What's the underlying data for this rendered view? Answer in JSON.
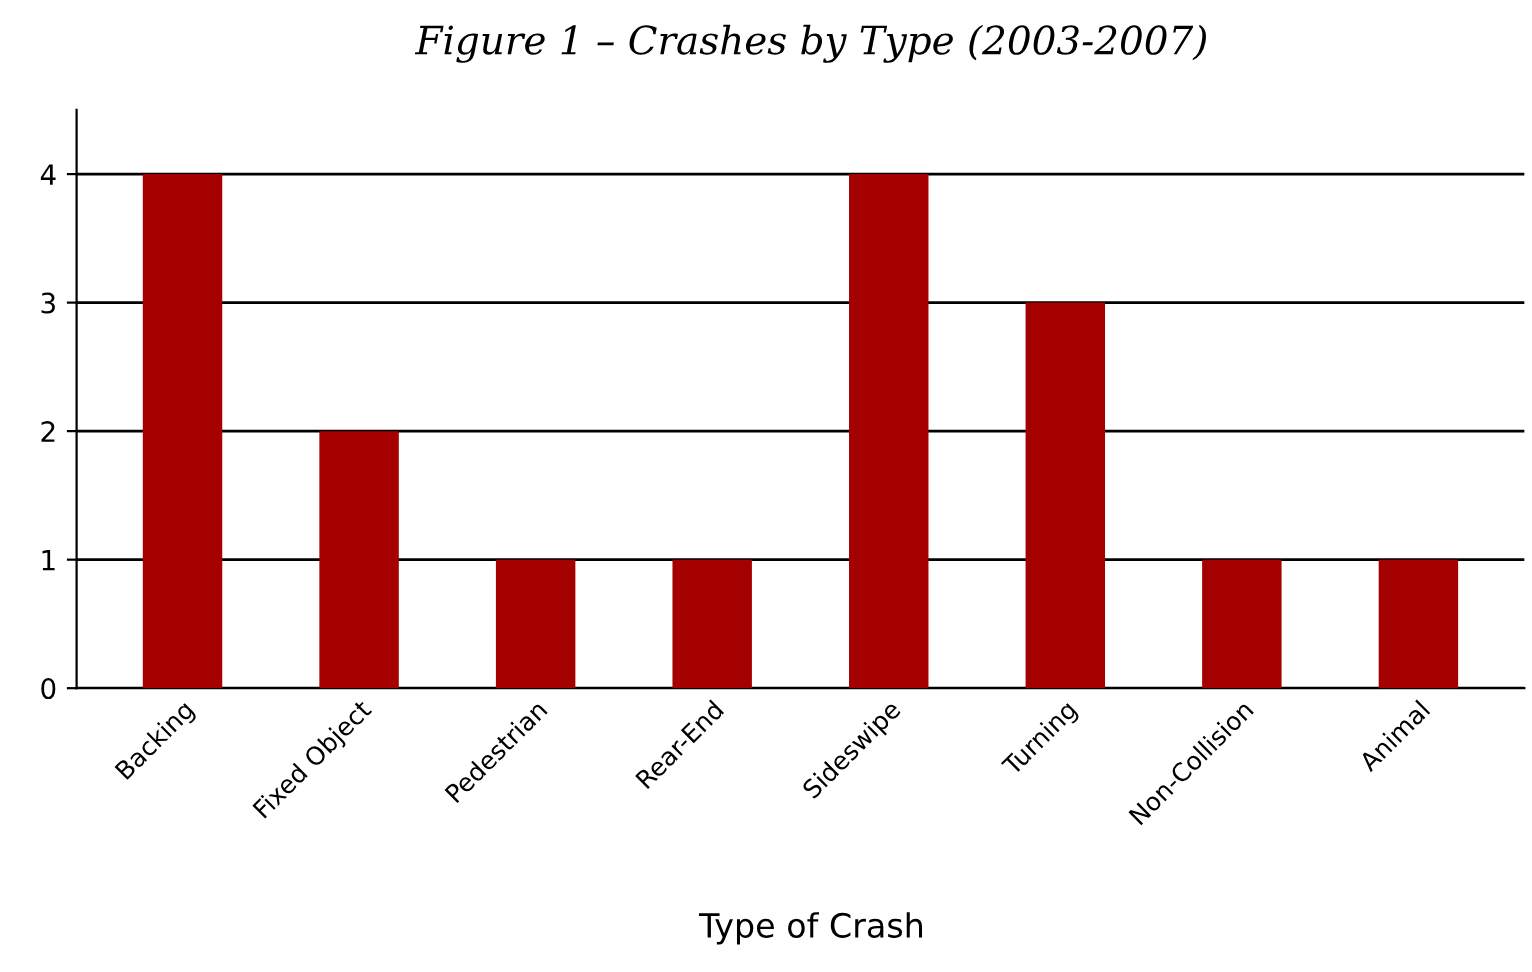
{
  "chart_data": {
    "type": "bar",
    "title": "Figure 1 – Crashes by Type (2003-2007)",
    "xlabel": "Type of Crash",
    "categories": [
      "Backing",
      "Fixed Object",
      "Pedestrian",
      "Rear-End",
      "Sideswipe",
      "Turning",
      "Non-Collision",
      "Animal"
    ],
    "values": [
      4,
      2,
      1,
      1,
      4,
      3,
      1,
      1
    ],
    "color": "#a50000",
    "ylim": [
      0,
      4.5
    ],
    "yticks": [
      0,
      1,
      2,
      3,
      4
    ],
    "grid": "y",
    "legend": false
  }
}
